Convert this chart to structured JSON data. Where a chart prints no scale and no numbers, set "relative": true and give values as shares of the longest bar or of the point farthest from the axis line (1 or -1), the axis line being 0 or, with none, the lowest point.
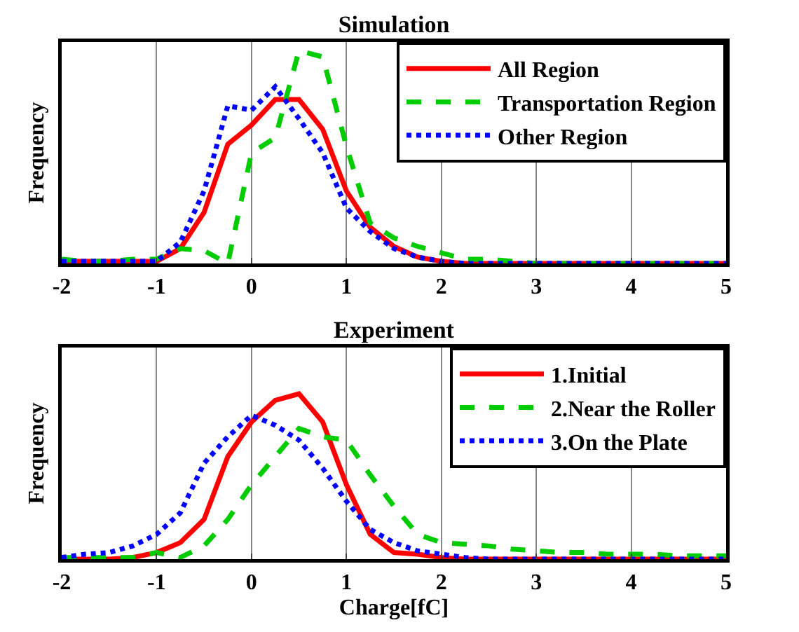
{
  "chart_data": [
    {
      "type": "line",
      "title": "Simulation",
      "ylabel": "Frequency",
      "relative": true,
      "grid": "x",
      "legend": "top right",
      "xlim": [
        -2,
        5
      ],
      "xticks": [
        -2,
        -1,
        0,
        1,
        2,
        3,
        4,
        5
      ],
      "x": [
        -2,
        -1.75,
        -1.5,
        -1.25,
        -1,
        -0.75,
        -0.5,
        -0.25,
        0,
        0.25,
        0.5,
        0.75,
        1,
        1.25,
        1.5,
        1.75,
        2,
        2.25,
        2.5,
        2.75,
        3,
        3.25,
        3.5,
        3.75,
        4,
        4.25,
        4.5,
        4.75,
        5
      ],
      "series": [
        {
          "name": "All Region",
          "color": "#ff0000",
          "line_style": "solid",
          "values": [
            0.01,
            0.01,
            0.01,
            0.01,
            0.01,
            0.07,
            0.24,
            0.56,
            0.65,
            0.77,
            0.77,
            0.63,
            0.34,
            0.17,
            0.08,
            0.03,
            0.01,
            0,
            0,
            0,
            0,
            0,
            0,
            0,
            0,
            0,
            0,
            0,
            0
          ]
        },
        {
          "name": "Transportation Region",
          "color": "#00cc00",
          "line_style": "dashed",
          "values": [
            0.02,
            0.01,
            0.01,
            0.02,
            0.02,
            0.07,
            0.06,
            0,
            0.52,
            0.59,
            1,
            0.97,
            0.55,
            0.19,
            0.12,
            0.08,
            0.05,
            0.02,
            0.02,
            0.01,
            0,
            0,
            0,
            0,
            0,
            0,
            0,
            0,
            0
          ]
        },
        {
          "name": "Other Region",
          "color": "#0000ff",
          "line_style": "dotted",
          "values": [
            0.01,
            0.01,
            0.01,
            0.01,
            0.01,
            0.1,
            0.34,
            0.74,
            0.72,
            0.83,
            0.68,
            0.52,
            0.26,
            0.15,
            0.07,
            0.03,
            0.01,
            0,
            0,
            0,
            0,
            0,
            0,
            0,
            0,
            0,
            0,
            0,
            0
          ]
        }
      ]
    },
    {
      "type": "line",
      "title": "Experiment",
      "xlabel": "Charge[fC]",
      "ylabel": "Frequency",
      "relative": true,
      "grid": "x",
      "legend": "top right",
      "xlim": [
        -2,
        5
      ],
      "xticks": [
        -2,
        -1,
        0,
        1,
        2,
        3,
        4,
        5
      ],
      "x": [
        -2,
        -1.75,
        -1.5,
        -1.25,
        -1,
        -0.75,
        -0.5,
        -0.25,
        0,
        0.25,
        0.5,
        0.75,
        1,
        1.25,
        1.5,
        1.75,
        2,
        2.25,
        2.5,
        2.75,
        3,
        3.25,
        3.5,
        3.75,
        4,
        4.25,
        4.5,
        4.75,
        5
      ],
      "series": [
        {
          "name": "1.Initial",
          "color": "#ff0000",
          "line_style": "solid",
          "values": [
            0,
            0,
            0,
            0.01,
            0.04,
            0.1,
            0.24,
            0.62,
            0.83,
            0.96,
            1,
            0.83,
            0.45,
            0.15,
            0.04,
            0.03,
            0.01,
            0,
            0,
            0,
            0,
            0,
            0,
            0,
            0,
            0,
            0,
            0,
            0
          ]
        },
        {
          "name": "2.Near the Roller",
          "color": "#00cc00",
          "line_style": "dashed",
          "values": [
            0.01,
            0.01,
            0.01,
            0.01,
            0.04,
            0.01,
            0.08,
            0.24,
            0.45,
            0.62,
            0.79,
            0.74,
            0.72,
            0.51,
            0.32,
            0.15,
            0.1,
            0.09,
            0.08,
            0.06,
            0.05,
            0.04,
            0.04,
            0.03,
            0.03,
            0.03,
            0.02,
            0.02,
            0.02
          ]
        },
        {
          "name": "3.On the Plate",
          "color": "#0000ff",
          "line_style": "dotted",
          "values": [
            0.01,
            0.03,
            0.04,
            0.08,
            0.15,
            0.28,
            0.58,
            0.74,
            0.87,
            0.81,
            0.72,
            0.55,
            0.35,
            0.18,
            0.1,
            0.05,
            0.03,
            0.01,
            0,
            0,
            0,
            0,
            0,
            0,
            0,
            0,
            0,
            0,
            0
          ]
        }
      ]
    }
  ]
}
